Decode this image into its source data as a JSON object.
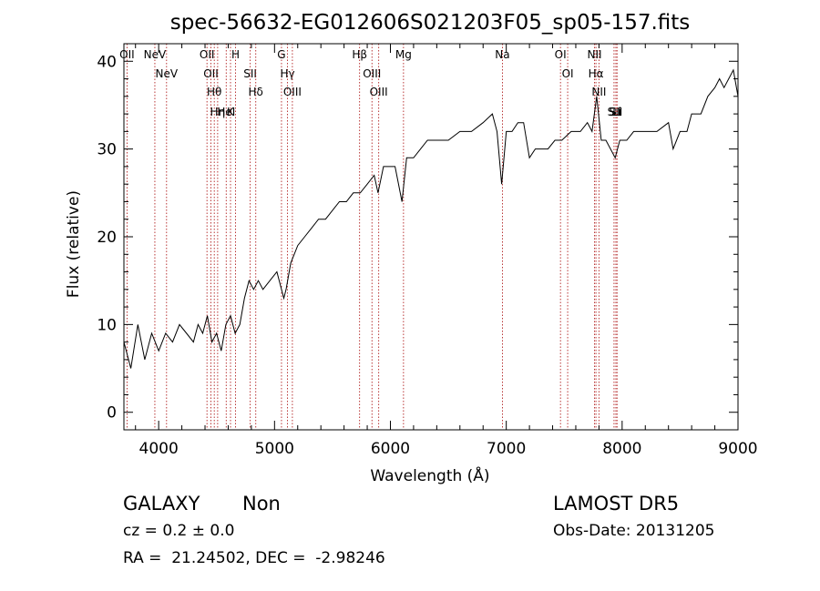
{
  "chart_data": {
    "type": "line",
    "title": "spec-56632-EG012606S021203F05_sp05-157.fits",
    "xlabel": "Wavelength (Å)",
    "ylabel": "Flux (relative)",
    "xlim": [
      3700,
      9000
    ],
    "ylim": [
      -2,
      42
    ],
    "x_ticks": [
      4000,
      5000,
      6000,
      7000,
      8000,
      9000
    ],
    "y_ticks": [
      0,
      10,
      20,
      30,
      40
    ],
    "grid": false,
    "series": [
      {
        "color": "#000000",
        "x": [
          3700,
          3760,
          3820,
          3880,
          3940,
          4000,
          4060,
          4120,
          4180,
          4240,
          4300,
          4340,
          4380,
          4420,
          4460,
          4500,
          4540,
          4580,
          4620,
          4660,
          4700,
          4740,
          4780,
          4820,
          4860,
          4900,
          4960,
          5020,
          5080,
          5100,
          5140,
          5200,
          5260,
          5320,
          5380,
          5440,
          5500,
          5560,
          5620,
          5680,
          5740,
          5800,
          5860,
          5893,
          5940,
          6000,
          6040,
          6100,
          6140,
          6200,
          6260,
          6320,
          6400,
          6500,
          6600,
          6700,
          6800,
          6880,
          6920,
          6960,
          7000,
          7050,
          7100,
          7150,
          7200,
          7250,
          7300,
          7360,
          7420,
          7480,
          7560,
          7640,
          7700,
          7740,
          7780,
          7820,
          7860,
          7900,
          7940,
          7980,
          8040,
          8100,
          8200,
          8300,
          8400,
          8440,
          8500,
          8560,
          8600,
          8680,
          8740,
          8800,
          8840,
          8880,
          8920,
          8960,
          9000
        ],
        "y": [
          8,
          5,
          10,
          6,
          9,
          7,
          9,
          8,
          10,
          9,
          8,
          10,
          9,
          11,
          8,
          9,
          7,
          10,
          11,
          9,
          10,
          13,
          15,
          14,
          15,
          14,
          15,
          16,
          13,
          14,
          17,
          19,
          20,
          21,
          22,
          22,
          23,
          24,
          24,
          25,
          25,
          26,
          27,
          25,
          28,
          28,
          28,
          24,
          29,
          29,
          30,
          31,
          31,
          31,
          32,
          32,
          33,
          34,
          32,
          26,
          32,
          32,
          33,
          33,
          29,
          30,
          30,
          30,
          31,
          31,
          32,
          32,
          33,
          32,
          36,
          31,
          31,
          30,
          29,
          31,
          31,
          32,
          32,
          32,
          33,
          30,
          32,
          32,
          34,
          34,
          36,
          37,
          38,
          37,
          38,
          39,
          36
        ]
      }
    ],
    "line_markers": [
      {
        "label": "NeV",
        "x": 3426
      },
      {
        "label": "OII",
        "x": 3727
      },
      {
        "label": "NeV",
        "x": 3967
      },
      {
        "label": "NeV",
        "x": 4068
      },
      {
        "label": "OII",
        "x": 4417
      },
      {
        "label": "OII",
        "x": 4451
      },
      {
        "label": "Hθ",
        "x": 4480
      },
      {
        "label": "Hη",
        "x": 4509
      },
      {
        "label": "HeI",
        "x": 4583
      },
      {
        "label": "K",
        "x": 4620
      },
      {
        "label": "H",
        "x": 4663
      },
      {
        "label": "SII",
        "x": 4790
      },
      {
        "label": "Hδ",
        "x": 4838
      },
      {
        "label": "G",
        "x": 5060
      },
      {
        "label": "Hγ",
        "x": 5112
      },
      {
        "label": "OIII",
        "x": 5154
      },
      {
        "label": "Hβ",
        "x": 5734
      },
      {
        "label": "OIII",
        "x": 5841
      },
      {
        "label": "OIII",
        "x": 5899
      },
      {
        "label": "Mg",
        "x": 6113
      },
      {
        "label": "Na",
        "x": 6967
      },
      {
        "label": "OI",
        "x": 7468
      },
      {
        "label": "OI",
        "x": 7530
      },
      {
        "label": "NII",
        "x": 7762
      },
      {
        "label": "Hα",
        "x": 7774
      },
      {
        "label": "NII",
        "x": 7800
      },
      {
        "label": "SII",
        "x": 7930
      },
      {
        "label": "SII",
        "x": 7946
      },
      {
        "label": "Li",
        "x": 7956
      }
    ],
    "marker_color": "#b22222"
  },
  "info": {
    "object_class": "GALAXY",
    "subclass": "Non",
    "survey": "LAMOST DR5",
    "cz": "cz = 0.2 ± 0.0",
    "obs_date": "Obs-Date: 20131205",
    "coords": "RA =  21.24502, DEC =  -2.98246"
  }
}
